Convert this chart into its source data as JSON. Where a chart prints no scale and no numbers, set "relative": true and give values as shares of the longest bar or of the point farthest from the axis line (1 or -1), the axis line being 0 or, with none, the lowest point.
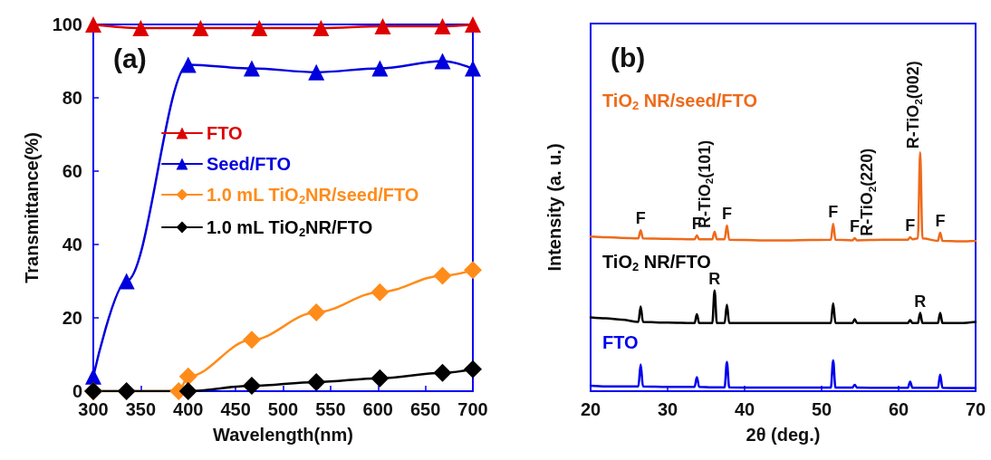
{
  "chart_data": [
    {
      "type": "line",
      "xlabel": "Wavelength(nm)",
      "ylabel": "Transmittance(%)",
      "xlim": [
        300,
        700
      ],
      "xticks": [
        300,
        350,
        400,
        450,
        500,
        550,
        600,
        650,
        700
      ],
      "ylim": [
        0,
        100
      ],
      "yticks": [
        0,
        20,
        40,
        60,
        80,
        100
      ],
      "grid": false,
      "legend": "left",
      "line_style": "solid",
      "annotations": [
        "(a)"
      ],
      "series": [
        {
          "name": "FTO",
          "color": "#dd0000",
          "marker": "triangle",
          "x": [
            300,
            350,
            413,
            475,
            540,
            605,
            668,
            700
          ],
          "values": [
            100,
            99,
            99,
            99,
            99,
            99.5,
            99.5,
            100
          ]
        },
        {
          "name": "Seed/FTO",
          "color": "#0000dd",
          "marker": "triangle",
          "x": [
            300,
            335,
            400,
            467,
            535,
            602,
            668,
            700
          ],
          "values": [
            4,
            30,
            89,
            88,
            87,
            88,
            90,
            88
          ]
        },
        {
          "name": "1.0 mL TiO$_{2}$NR/seed/FTO",
          "color": "#ff8c1a",
          "marker": "diamond",
          "x": [
            300,
            390,
            400,
            467,
            535,
            602,
            668,
            700
          ],
          "values": [
            0,
            0,
            4,
            14,
            21.5,
            27,
            31.5,
            33
          ]
        },
        {
          "name": "1.0 mL TiO$_{2}$NR/FTO",
          "color": "#000000",
          "marker": "diamond",
          "x": [
            300,
            335,
            400,
            467,
            535,
            602,
            668,
            700
          ],
          "values": [
            0,
            0,
            0,
            1.5,
            2.5,
            3.5,
            5,
            6
          ]
        }
      ]
    },
    {
      "type": "line",
      "relative": true,
      "xlabel": "2θ (deg.)",
      "ylabel": "Intensity (a. u.)",
      "xlim": [
        20,
        70
      ],
      "xticks": [
        20,
        30,
        40,
        50,
        60,
        70
      ],
      "grid": false,
      "legend": false,
      "marker": "none",
      "line_style": "solid",
      "annotations": [
        "(b)",
        {
          "text": "F",
          "x": 26.5,
          "y": 0.674
        },
        {
          "text": "F",
          "x": 33.8,
          "y": 0.652
        },
        {
          "text": "R-TiO$_{2}$(101)",
          "x": 36.1,
          "y": 0.668
        },
        {
          "text": "F",
          "x": 37.7,
          "y": 0.694
        },
        {
          "text": "F",
          "x": 51.5,
          "y": 0.701
        },
        {
          "text": "F",
          "x": 54.3,
          "y": 0.641
        },
        {
          "text": "R-TiO$_{2}$(220)",
          "x": 57.2,
          "y": 0.634
        },
        {
          "text": "F",
          "x": 61.5,
          "y": 0.645
        },
        {
          "text": "R-TiO$_{2}$(002)",
          "x": 63.2,
          "y": 1.0
        },
        {
          "text": "F",
          "x": 65.4,
          "y": 0.664
        },
        {
          "text": "R",
          "x": 36.1,
          "y": 0.422
        },
        {
          "text": "R",
          "x": 62.8,
          "y": 0.328
        }
      ],
      "x": [
        20,
        22,
        24,
        26.2,
        26.5,
        26.8,
        30,
        33.5,
        33.8,
        34.1,
        35.8,
        36.1,
        36.4,
        37.4,
        37.7,
        38.0,
        42,
        46,
        51.2,
        51.5,
        51.8,
        54.0,
        54.3,
        54.6,
        58,
        61.2,
        61.5,
        61.8,
        62.5,
        62.8,
        63.1,
        65.1,
        65.4,
        65.7,
        68,
        70
      ],
      "series": [
        {
          "name": "TiO$_{2}$ NR/seed/FTO",
          "color": "#ee6a1a",
          "values": [
            0.648,
            0.645,
            0.642,
            0.64,
            0.674,
            0.64,
            0.638,
            0.636,
            0.652,
            0.636,
            0.636,
            0.668,
            0.636,
            0.636,
            0.694,
            0.634,
            0.632,
            0.632,
            0.634,
            0.701,
            0.634,
            0.632,
            0.641,
            0.632,
            0.634,
            0.634,
            0.645,
            0.636,
            0.64,
            1,
            0.64,
            0.63,
            0.664,
            0.63,
            0.628,
            0.63
          ]
        },
        {
          "name": "TiO$_{2}$ NR/FTO",
          "color": "#000000",
          "values": [
            0.309,
            0.305,
            0.3,
            0.29,
            0.355,
            0.29,
            0.287,
            0.285,
            0.322,
            0.285,
            0.285,
            0.422,
            0.285,
            0.285,
            0.362,
            0.285,
            0.285,
            0.285,
            0.285,
            0.368,
            0.285,
            0.285,
            0.302,
            0.285,
            0.285,
            0.285,
            0.298,
            0.285,
            0.285,
            0.328,
            0.285,
            0.285,
            0.328,
            0.285,
            0.285,
            0.29
          ]
        },
        {
          "name": "FTO",
          "color": "#0000ee",
          "values": [
            0.023,
            0.02,
            0.02,
            0.02,
            0.112,
            0.02,
            0.018,
            0.018,
            0.059,
            0.018,
            0.016,
            0.016,
            0.016,
            0.016,
            0.122,
            0.016,
            0.015,
            0.015,
            0.015,
            0.129,
            0.015,
            0.015,
            0.027,
            0.015,
            0.014,
            0.014,
            0.04,
            0.014,
            0.014,
            0.014,
            0.014,
            0.014,
            0.069,
            0.014,
            0.013,
            0.013
          ]
        }
      ]
    }
  ]
}
